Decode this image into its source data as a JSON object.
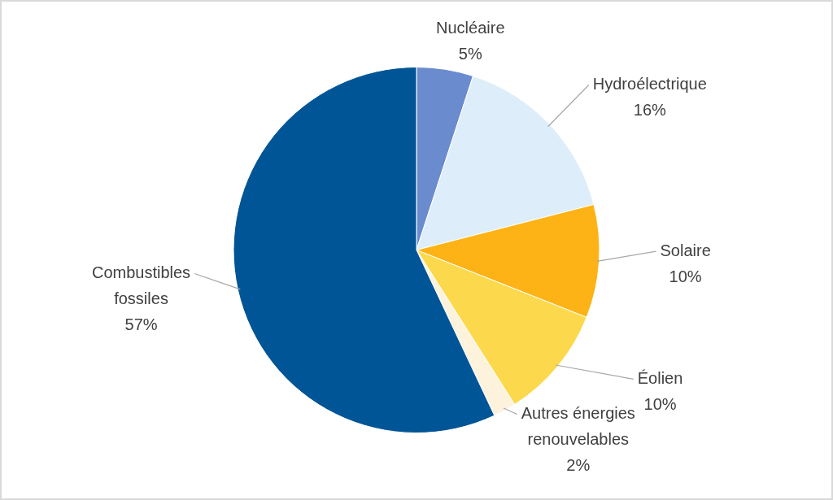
{
  "chart_data": {
    "type": "pie",
    "categories": [
      "Nucléaire",
      "Hydroélectrique",
      "Solaire",
      "Éolien",
      "Autres énergies renouvelables",
      "Combustibles fossiles"
    ],
    "values": [
      5,
      16,
      10,
      10,
      2,
      57
    ],
    "value_labels": [
      "5%",
      "16%",
      "10%",
      "10%",
      "2%",
      "57%"
    ],
    "colors": [
      "#6a8ccf",
      "#ddeefa",
      "#fdb316",
      "#fcd94c",
      "#fdf3dc",
      "#005596"
    ],
    "legend": false
  }
}
